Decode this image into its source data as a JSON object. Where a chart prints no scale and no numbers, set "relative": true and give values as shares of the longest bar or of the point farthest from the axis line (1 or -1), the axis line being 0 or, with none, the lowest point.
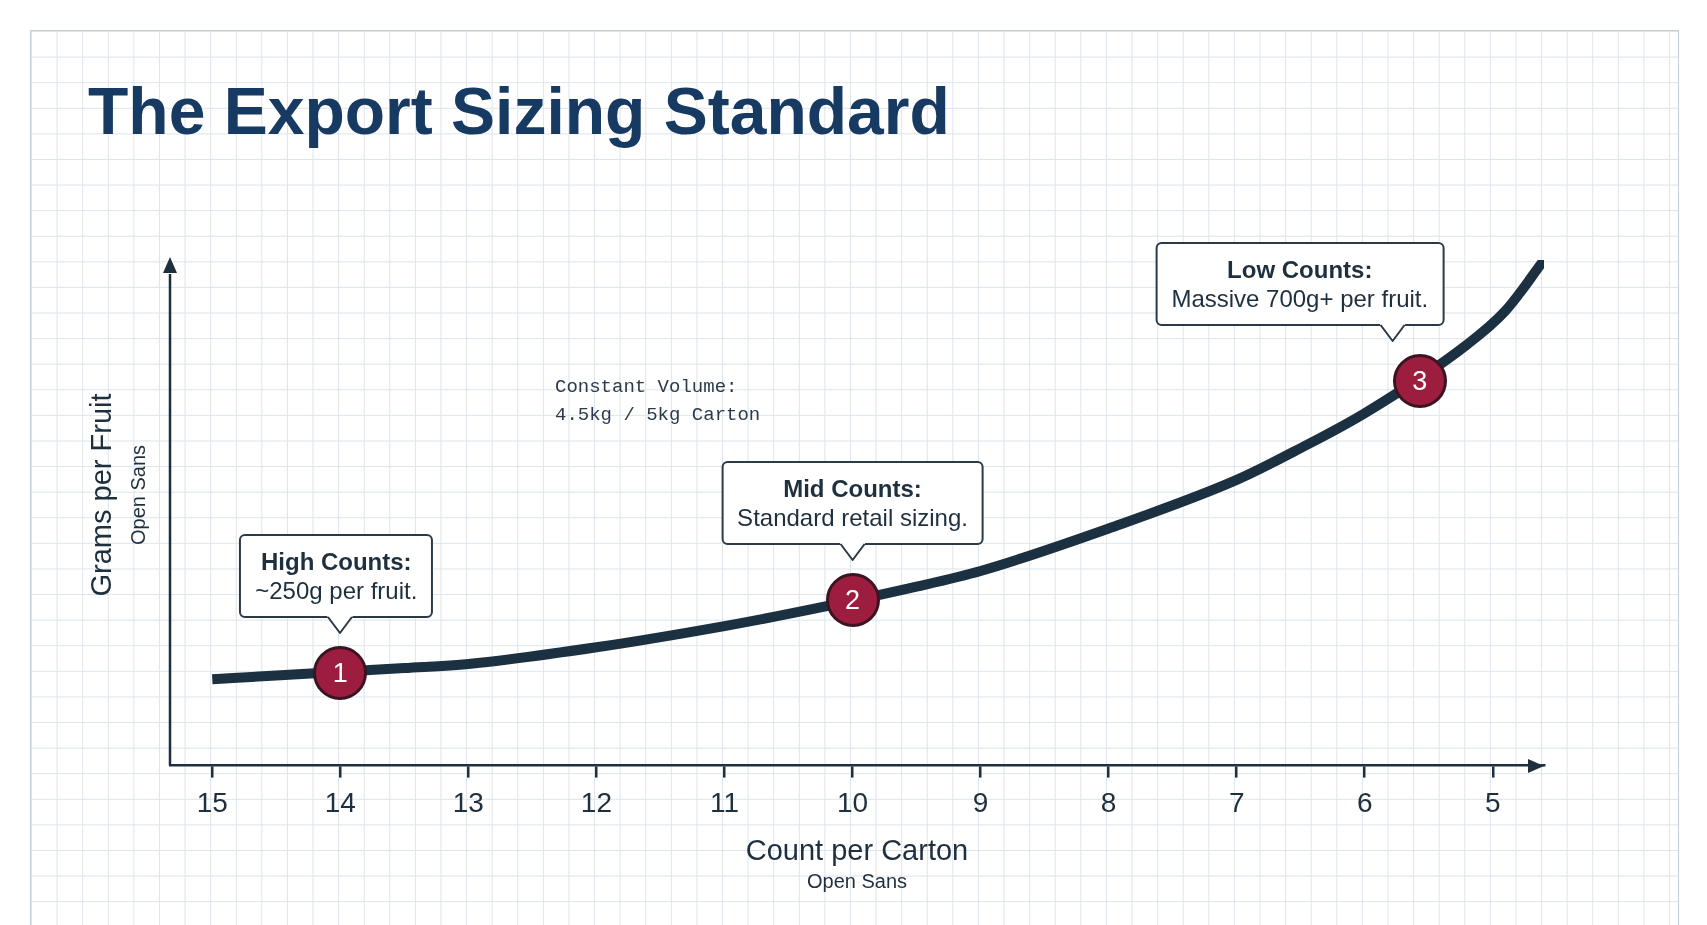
{
  "chart_data": {
    "type": "line",
    "title": "The Export Sizing Standard",
    "xlabel": "Count per Carton",
    "ylabel": "Grams per Fruit",
    "relative": true,
    "x": [
      15,
      14.5,
      13.5,
      13,
      12,
      11,
      10.5,
      9.5,
      9,
      8,
      7,
      6.5,
      6,
      5.2,
      4.9,
      4.6
    ],
    "series": [
      {
        "color": "#1b3142",
        "values": [
          0.171,
          0.178,
          0.193,
          0.201,
          0.234,
          0.276,
          0.3,
          0.354,
          0.385,
          0.469,
          0.565,
          0.628,
          0.697,
          0.833,
          0.9,
          1
        ]
      }
    ],
    "xlim": [
      15.33,
      4.6
    ],
    "xticks": [
      15,
      14,
      13,
      12,
      11,
      10,
      9,
      8,
      7,
      6,
      5
    ],
    "annotations": [
      {
        "text": "1",
        "x": 14,
        "y": 0.183
      },
      {
        "text": "2",
        "x": 10,
        "y": 0.328
      },
      {
        "text": "3",
        "x": 5.57,
        "y": 0.761
      },
      {
        "text": "High Counts:\n~250g per fruit.",
        "x": 14,
        "y": 0.183
      },
      {
        "text": "Mid Counts:\nStandard retail sizing.",
        "x": 10,
        "y": 0.328
      },
      {
        "text": "Low Counts:\nMassive 700g+ per fruit.",
        "x": 5.57,
        "y": 0.761
      },
      "Constant Volume:\n4.5kg / 5kg Carton",
      "Open Sans",
      "Open Sans"
    ]
  }
}
